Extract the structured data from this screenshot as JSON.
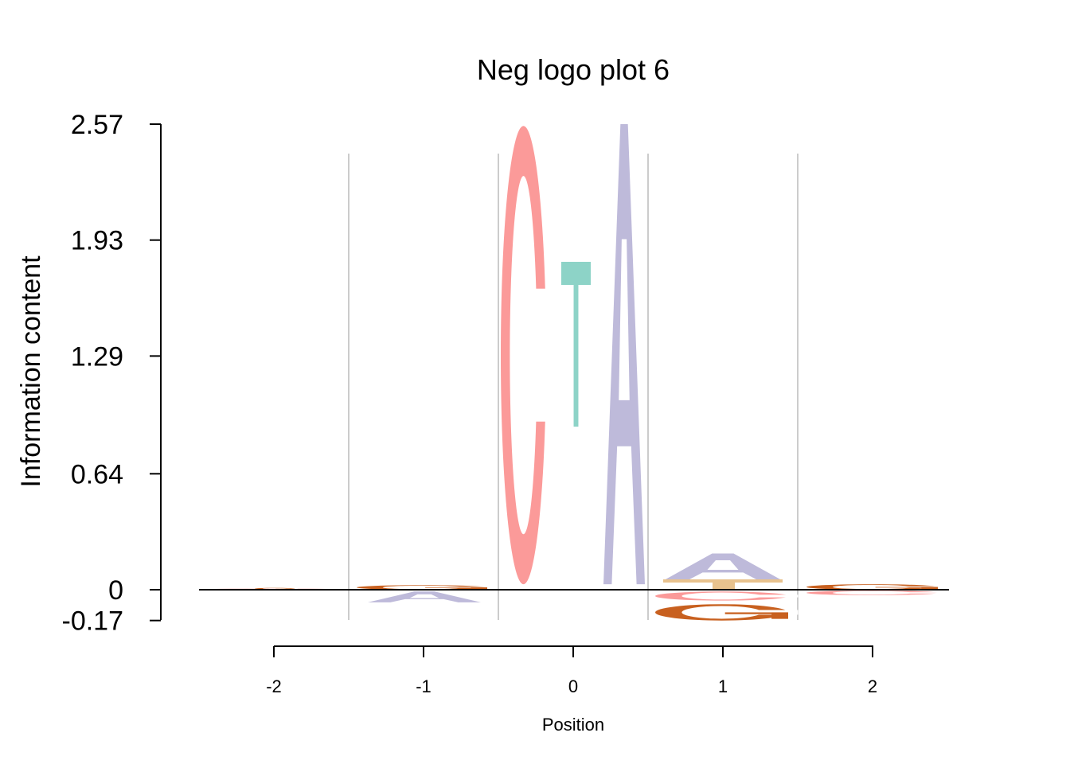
{
  "chart_data": {
    "type": "sequence-logo",
    "title": "Neg logo plot 6",
    "xlabel": "Position",
    "ylabel": "Information content",
    "yticks": [
      "2.57",
      "1.93",
      "1.29",
      "0.64",
      "0",
      "-0.17"
    ],
    "ytick_values": [
      2.57,
      1.93,
      1.29,
      0.64,
      0,
      -0.17
    ],
    "ylim": [
      -0.17,
      2.57
    ],
    "xticks": [
      "-2",
      "-1",
      "0",
      "1",
      "2"
    ],
    "xtick_values": [
      -2,
      -1,
      0,
      1,
      2
    ],
    "xlim": [
      -2.5,
      2.5
    ],
    "colors": {
      "A": "#bebada",
      "C": "#fb9a99",
      "G": "#c8601f",
      "T": "#8dd3c7",
      "grid": "#cccccc"
    },
    "columns": [
      {
        "position": -2,
        "letters": [
          {
            "letter": "C",
            "bottom": 0.0,
            "top": 0.006
          },
          {
            "letter": "G",
            "bottom": 0.006,
            "top": 0.01
          }
        ]
      },
      {
        "position": -1,
        "letters": [
          {
            "letter": "G",
            "bottom": 0.0,
            "top": 0.025
          },
          {
            "letter": "A",
            "bottom": -0.07,
            "top": -0.01
          }
        ]
      },
      {
        "position": 0,
        "letters": [
          {
            "letter": "C",
            "bottom": 0.03,
            "top": 2.56
          },
          {
            "letter": "T",
            "bottom": 0.9,
            "top": 1.81
          },
          {
            "letter": "A",
            "bottom": 0.03,
            "top": 2.57
          }
        ]
      },
      {
        "position": 1,
        "letters": [
          {
            "letter": "A",
            "bottom": 0.05,
            "top": 0.2
          },
          {
            "letter": "C",
            "bottom": -0.06,
            "top": -0.01
          },
          {
            "letter": "G",
            "bottom": -0.17,
            "top": -0.08
          }
        ]
      },
      {
        "position": 2,
        "letters": [
          {
            "letter": "G",
            "bottom": 0.0,
            "top": 0.03
          },
          {
            "letter": "C",
            "bottom": -0.03,
            "top": -0.005
          }
        ]
      }
    ]
  }
}
